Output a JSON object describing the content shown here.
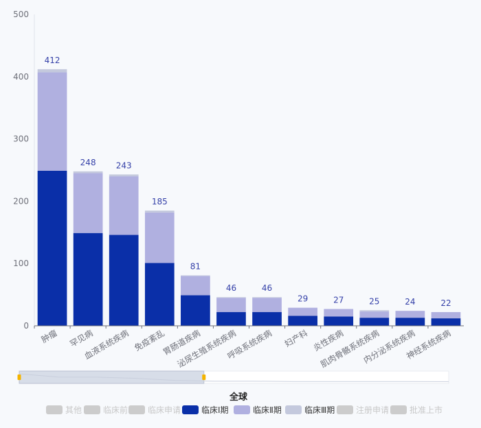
{
  "chart_data": {
    "type": "bar",
    "stacked": true,
    "title": "全球",
    "categories": [
      "肿瘤",
      "罕见病",
      "血液系统疾病",
      "免疫紊乱",
      "胃肠道疾病",
      "泌尿生殖系统疾病",
      "呼吸系统疾病",
      "妇产科",
      "炎性疾病",
      "肌肉骨骼系统疾病",
      "内分泌系统疾病",
      "神经系统疾病"
    ],
    "totals": [
      412,
      248,
      243,
      185,
      81,
      46,
      46,
      29,
      27,
      25,
      24,
      22
    ],
    "series": [
      {
        "name": "临床Ⅰ期",
        "color": "#0a2fa8",
        "values": [
          249,
          149,
          146,
          101,
          49,
          22,
          22,
          16,
          15,
          13,
          13,
          12
        ]
      },
      {
        "name": "临床Ⅱ期",
        "color": "#b0b0e0",
        "values": [
          158,
          96,
          94,
          81,
          31,
          23,
          23,
          13,
          12,
          10,
          11,
          10
        ]
      },
      {
        "name": "临床Ⅲ期",
        "color": "#c4c9dd",
        "values": [
          5,
          3,
          3,
          3,
          1,
          1,
          1,
          0,
          0,
          2,
          0,
          0
        ]
      }
    ],
    "yticks": [
      0,
      100,
      200,
      300,
      400,
      500
    ],
    "ylim": [
      0,
      500
    ],
    "grid": false,
    "legend": {
      "placement": "bottom",
      "items": [
        {
          "name": "其他",
          "active": false,
          "color": "#cccccc"
        },
        {
          "name": "临床前",
          "active": false,
          "color": "#cccccc"
        },
        {
          "name": "临床申请",
          "active": false,
          "color": "#cccccc"
        },
        {
          "name": "临床Ⅰ期",
          "active": true,
          "color": "#0a2fa8"
        },
        {
          "name": "临床Ⅱ期",
          "active": true,
          "color": "#b0b0e0"
        },
        {
          "name": "临床Ⅲ期",
          "active": true,
          "color": "#c4c9dd"
        },
        {
          "name": "注册申请",
          "active": false,
          "color": "#cccccc"
        },
        {
          "name": "批准上市",
          "active": false,
          "color": "#cccccc"
        }
      ]
    },
    "datazoom": {
      "start": 0,
      "end": 0.43
    }
  }
}
